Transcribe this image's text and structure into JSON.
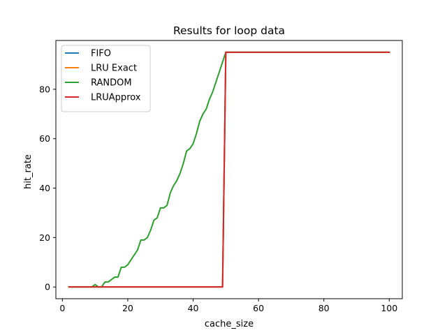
{
  "chart_data": {
    "type": "line",
    "title": "Results for loop data",
    "xlabel": "cache_size",
    "ylabel": "hit_rate",
    "xlim": [
      -2,
      104
    ],
    "ylim": [
      -4.75,
      99.75
    ],
    "xticks": [
      0,
      20,
      40,
      60,
      80,
      100
    ],
    "yticks": [
      0,
      20,
      40,
      60,
      80
    ],
    "grid": false,
    "legend_position": "upper-left",
    "series": [
      {
        "name": "FIFO",
        "color": "#1f77b4",
        "x": [
          2,
          49,
          50,
          100
        ],
        "y": [
          0,
          0,
          95,
          95
        ]
      },
      {
        "name": "LRU Exact",
        "color": "#ff7f0e",
        "x": [
          2,
          49,
          50,
          100
        ],
        "y": [
          0,
          0,
          95,
          95
        ]
      },
      {
        "name": "RANDOM",
        "color": "#2ca02c",
        "x": [
          2,
          3,
          4,
          5,
          6,
          7,
          8,
          9,
          10,
          11,
          12,
          13,
          14,
          15,
          16,
          17,
          18,
          19,
          20,
          21,
          22,
          23,
          24,
          25,
          26,
          27,
          28,
          29,
          30,
          31,
          32,
          33,
          34,
          35,
          36,
          37,
          38,
          39,
          40,
          41,
          42,
          43,
          44,
          45,
          46,
          47,
          48,
          49,
          50,
          51,
          60,
          70,
          80,
          90,
          100
        ],
        "y": [
          0,
          0,
          0,
          0,
          0,
          0,
          0,
          0,
          1,
          0,
          0,
          2,
          2,
          3,
          4,
          4,
          8,
          8,
          9,
          11,
          13,
          15,
          19,
          19,
          20,
          23,
          27,
          28,
          32,
          32,
          33,
          38,
          41,
          43,
          46,
          50,
          55,
          56,
          58,
          62,
          67,
          70,
          72,
          76,
          79,
          83,
          87,
          91,
          95,
          95,
          95,
          95,
          95,
          95,
          95
        ]
      },
      {
        "name": "LRUApprox",
        "color": "#d62728",
        "x": [
          2,
          49,
          50,
          100
        ],
        "y": [
          0,
          0,
          95,
          95
        ]
      }
    ]
  }
}
